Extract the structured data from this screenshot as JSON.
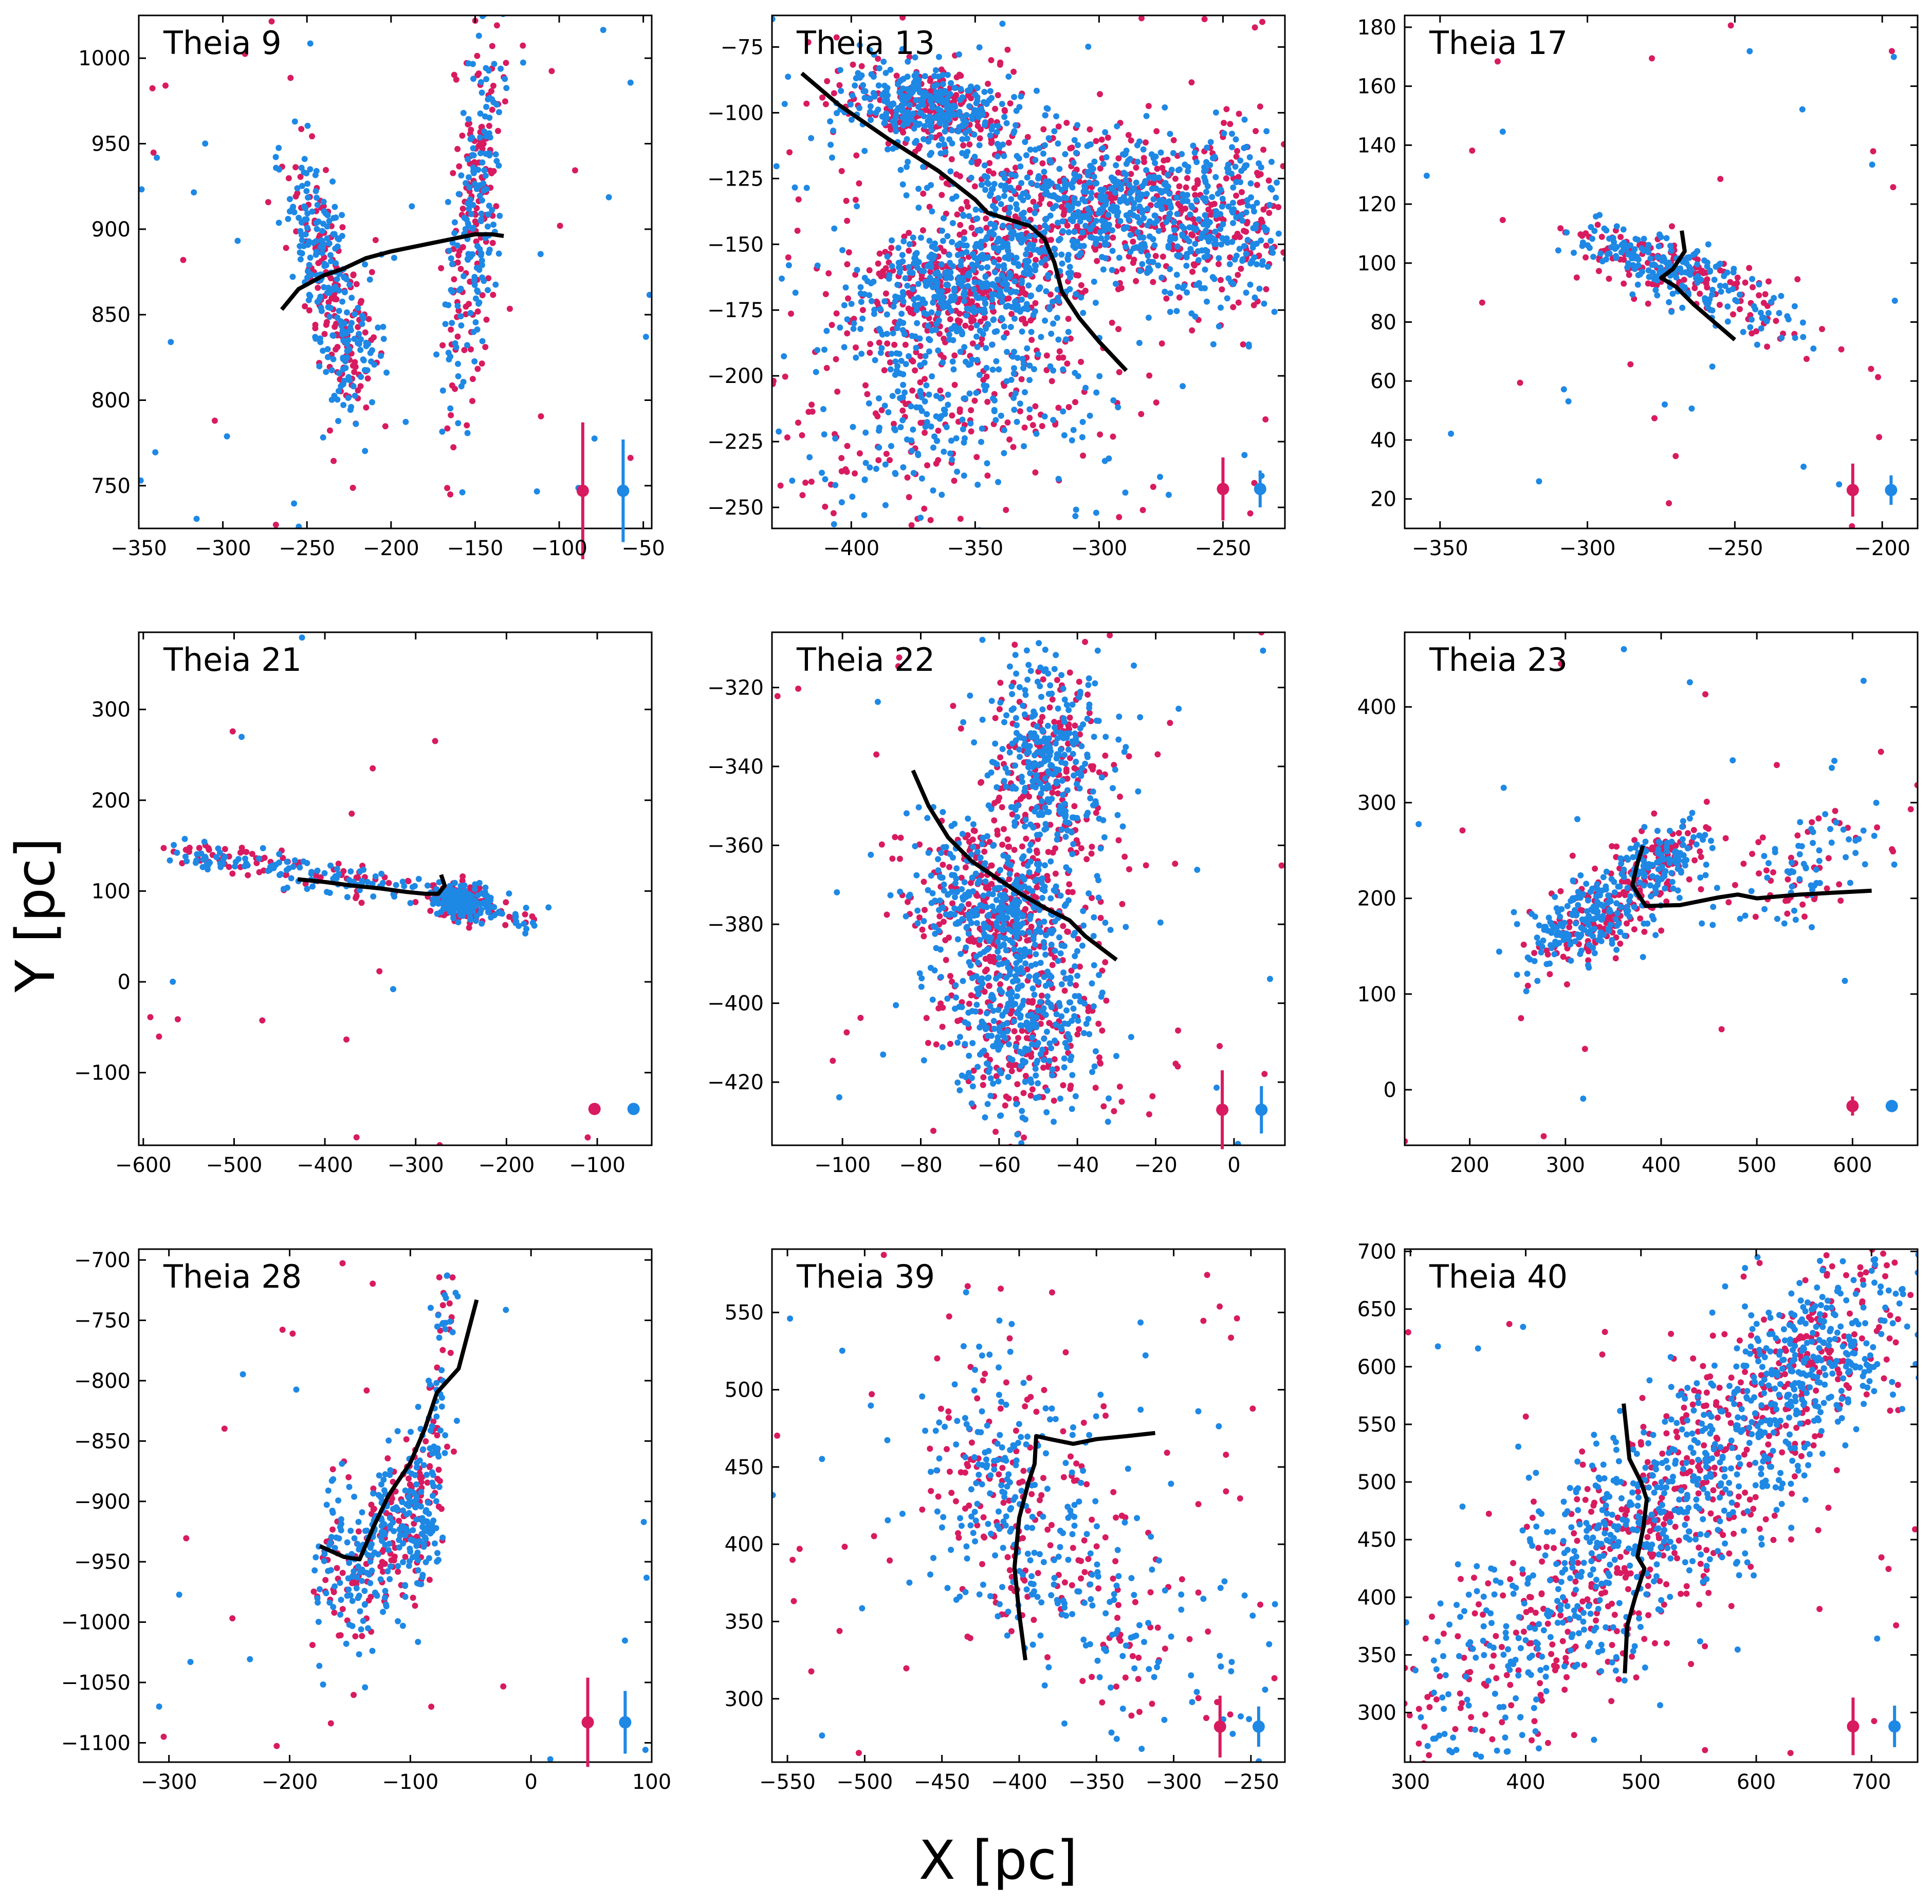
{
  "figure": {
    "xlabel": "X [pc]",
    "ylabel": "Y [pc]",
    "colors": {
      "series_a": "#d81b60",
      "series_b": "#1e88e5",
      "fit_line": "#000000",
      "frame": "#000000"
    }
  },
  "chart_data": [
    {
      "type": "scatter",
      "title": "Theia 9",
      "xlim": [
        -350,
        -45
      ],
      "ylim": [
        725,
        1025
      ],
      "xticks": [
        -350,
        -300,
        -250,
        -200,
        -150,
        -100,
        -50
      ],
      "yticks": [
        750,
        800,
        850,
        900,
        950,
        1000
      ],
      "clusters": [
        {
          "x": -240,
          "y": 880,
          "sx": 11,
          "sy": 30,
          "rho": -0.6,
          "n": 260
        },
        {
          "x": -225,
          "y": 830,
          "sx": 10,
          "sy": 25,
          "rho": 0.2,
          "n": 120
        },
        {
          "x": -150,
          "y": 910,
          "sx": 8,
          "sy": 55,
          "rho": 0.55,
          "n": 320
        }
      ],
      "outliers": 55,
      "fit_line": [
        [
          -265,
          853
        ],
        [
          -255,
          865
        ],
        [
          -240,
          873
        ],
        [
          -228,
          877
        ],
        [
          -215,
          883
        ],
        [
          -200,
          887
        ],
        [
          -175,
          892
        ],
        [
          -150,
          897
        ],
        [
          -140,
          897
        ],
        [
          -133,
          896
        ]
      ],
      "error_bars": [
        {
          "series": "series_a",
          "x": -86,
          "y": 747,
          "yerr": 40
        },
        {
          "series": "series_b",
          "x": -62,
          "y": 747,
          "yerr": 30
        }
      ]
    },
    {
      "type": "scatter",
      "title": "Theia 13",
      "xlim": [
        -432,
        -225
      ],
      "ylim": [
        -258,
        -63
      ],
      "xticks": [
        -400,
        -350,
        -300,
        -250
      ],
      "yticks": [
        -75,
        -100,
        -125,
        -150,
        -175,
        -200,
        -225,
        -250
      ],
      "clusters": [
        {
          "x": -370,
          "y": -97,
          "sx": 18,
          "sy": 8,
          "rho": -0.3,
          "n": 500
        },
        {
          "x": -300,
          "y": -135,
          "sx": 35,
          "sy": 14,
          "rho": -0.3,
          "n": 900
        },
        {
          "x": -355,
          "y": -165,
          "sx": 25,
          "sy": 12,
          "rho": 0.3,
          "n": 700
        },
        {
          "x": -360,
          "y": -210,
          "sx": 30,
          "sy": 22,
          "rho": 0.4,
          "n": 380
        },
        {
          "x": -250,
          "y": -140,
          "sx": 18,
          "sy": 18,
          "rho": 0.0,
          "n": 260
        }
      ],
      "outliers": 150,
      "fit_line": [
        [
          -420,
          -85
        ],
        [
          -405,
          -97
        ],
        [
          -385,
          -110
        ],
        [
          -365,
          -122
        ],
        [
          -350,
          -133
        ],
        [
          -345,
          -138
        ],
        [
          -335,
          -141
        ],
        [
          -328,
          -143
        ],
        [
          -322,
          -148
        ],
        [
          -318,
          -157
        ],
        [
          -315,
          -168
        ],
        [
          -308,
          -178
        ],
        [
          -300,
          -187
        ],
        [
          -289,
          -198
        ]
      ],
      "error_bars": [
        {
          "series": "series_a",
          "x": -250,
          "y": -243,
          "yerr": 12
        },
        {
          "series": "series_b",
          "x": -235,
          "y": -243,
          "yerr": 7
        }
      ]
    },
    {
      "type": "scatter",
      "title": "Theia 17",
      "xlim": [
        -362,
        -188
      ],
      "ylim": [
        10,
        184
      ],
      "xticks": [
        -350,
        -300,
        -250,
        -200
      ],
      "yticks": [
        20,
        40,
        60,
        80,
        100,
        120,
        140,
        160,
        180
      ],
      "clusters": [
        {
          "x": -280,
          "y": 102,
          "sx": 14,
          "sy": 5,
          "rho": -0.6,
          "n": 200
        },
        {
          "x": -255,
          "y": 88,
          "sx": 18,
          "sy": 8,
          "rho": -0.7,
          "n": 140
        }
      ],
      "outliers": 40,
      "fit_line": [
        [
          -268,
          111
        ],
        [
          -267,
          104
        ],
        [
          -271,
          98
        ],
        [
          -275,
          95
        ],
        [
          -270,
          92
        ],
        [
          -264,
          86
        ],
        [
          -257,
          80
        ],
        [
          -250,
          74
        ]
      ],
      "error_bars": [
        {
          "series": "series_a",
          "x": -210,
          "y": 23,
          "yerr": 9
        },
        {
          "series": "series_b",
          "x": -197,
          "y": 23,
          "yerr": 5
        }
      ]
    },
    {
      "type": "scatter",
      "title": "Theia 21",
      "xlim": [
        -605,
        -40
      ],
      "ylim": [
        -180,
        385
      ],
      "xticks": [
        -600,
        -500,
        -400,
        -300,
        -200,
        -100
      ],
      "yticks": [
        300,
        200,
        100,
        0,
        -100
      ],
      "clusters": [
        {
          "x": -250,
          "y": 88,
          "sx": 15,
          "sy": 9,
          "rho": 0.0,
          "n": 240
        },
        {
          "x": -380,
          "y": 112,
          "sx": 70,
          "sy": 12,
          "rho": -0.6,
          "n": 120
        },
        {
          "x": -520,
          "y": 137,
          "sx": 30,
          "sy": 8,
          "rho": -0.4,
          "n": 70
        },
        {
          "x": -200,
          "y": 72,
          "sx": 20,
          "sy": 8,
          "rho": -0.5,
          "n": 40
        }
      ],
      "outliers": 20,
      "fit_line": [
        [
          -430,
          113
        ],
        [
          -400,
          110
        ],
        [
          -370,
          106
        ],
        [
          -340,
          103
        ],
        [
          -310,
          99
        ],
        [
          -290,
          97
        ],
        [
          -275,
          97
        ],
        [
          -268,
          106
        ],
        [
          -272,
          118
        ]
      ],
      "error_bars": [
        {
          "series": "series_a",
          "x": -103,
          "y": -140,
          "yerr": 5
        },
        {
          "series": "series_b",
          "x": -60,
          "y": -140,
          "yerr": 3
        }
      ]
    },
    {
      "type": "scatter",
      "title": "Theia 22",
      "xlim": [
        -118,
        13
      ],
      "ylim": [
        -436,
        -306
      ],
      "xticks": [
        -100,
        -80,
        -60,
        -40,
        -20,
        0
      ],
      "yticks": [
        -320,
        -340,
        -360,
        -380,
        -400,
        -420
      ],
      "clusters": [
        {
          "x": -47,
          "y": -340,
          "sx": 8,
          "sy": 13,
          "rho": 0.0,
          "n": 500
        },
        {
          "x": -60,
          "y": -375,
          "sx": 11,
          "sy": 10,
          "rho": -0.3,
          "n": 600
        },
        {
          "x": -55,
          "y": -405,
          "sx": 11,
          "sy": 12,
          "rho": 0.0,
          "n": 500
        }
      ],
      "outliers": 60,
      "fit_line": [
        [
          -82,
          -341
        ],
        [
          -78,
          -350
        ],
        [
          -73,
          -358
        ],
        [
          -67,
          -364
        ],
        [
          -61,
          -368
        ],
        [
          -55,
          -372
        ],
        [
          -48,
          -376
        ],
        [
          -42,
          -379
        ],
        [
          -38,
          -383
        ],
        [
          -34,
          -386
        ],
        [
          -30,
          -389
        ]
      ],
      "error_bars": [
        {
          "series": "series_a",
          "x": -3,
          "y": -427,
          "yerr": 10
        },
        {
          "series": "series_b",
          "x": 7,
          "y": -427,
          "yerr": 6
        }
      ]
    },
    {
      "type": "scatter",
      "title": "Theia 23",
      "xlim": [
        132,
        668
      ],
      "ylim": [
        -58,
        478
      ],
      "xticks": [
        200,
        300,
        400,
        500,
        600
      ],
      "yticks": [
        0,
        100,
        200,
        300,
        400
      ],
      "clusters": [
        {
          "x": 330,
          "y": 180,
          "sx": 35,
          "sy": 25,
          "rho": 0.55,
          "n": 320
        },
        {
          "x": 400,
          "y": 240,
          "sx": 22,
          "sy": 20,
          "rho": 0.5,
          "n": 200
        },
        {
          "x": 555,
          "y": 240,
          "sx": 50,
          "sy": 35,
          "rho": 0.6,
          "n": 110
        }
      ],
      "outliers": 30,
      "fit_line": [
        [
          381,
          255
        ],
        [
          375,
          236
        ],
        [
          370,
          214
        ],
        [
          376,
          204
        ],
        [
          384,
          192
        ],
        [
          420,
          193
        ],
        [
          460,
          201
        ],
        [
          480,
          204
        ],
        [
          500,
          200
        ],
        [
          545,
          204
        ],
        [
          620,
          208
        ]
      ],
      "error_bars": [
        {
          "series": "series_a",
          "x": 600,
          "y": -17,
          "yerr": 10
        },
        {
          "series": "series_b",
          "x": 641,
          "y": -17,
          "yerr": 6
        }
      ]
    },
    {
      "type": "scatter",
      "title": "Theia 28",
      "xlim": [
        -325,
        100
      ],
      "ylim": [
        -1116,
        -691
      ],
      "xticks": [
        -300,
        -200,
        -100,
        0,
        100
      ],
      "yticks": [
        -700,
        -750,
        -800,
        -850,
        -900,
        -950,
        -1000,
        -1050,
        -1100
      ],
      "clusters": [
        {
          "x": -130,
          "y": -945,
          "sx": 16,
          "sy": 40,
          "rho": 0.5,
          "n": 220
        },
        {
          "x": -92,
          "y": -910,
          "sx": 11,
          "sy": 35,
          "rho": 0.3,
          "n": 180
        },
        {
          "x": -165,
          "y": -940,
          "sx": 8,
          "sy": 40,
          "rho": 0.6,
          "n": 60
        },
        {
          "x": -75,
          "y": -790,
          "sx": 6,
          "sy": 50,
          "rho": 0.6,
          "n": 50
        }
      ],
      "outliers": 30,
      "fit_line": [
        [
          -175,
          -937
        ],
        [
          -155,
          -946
        ],
        [
          -142,
          -948
        ],
        [
          -130,
          -920
        ],
        [
          -118,
          -895
        ],
        [
          -100,
          -868
        ],
        [
          -88,
          -840
        ],
        [
          -78,
          -810
        ],
        [
          -60,
          -790
        ],
        [
          -45,
          -733
        ]
      ],
      "error_bars": [
        {
          "series": "series_a",
          "x": 47,
          "y": -1083,
          "yerr": 37
        },
        {
          "series": "series_b",
          "x": 78,
          "y": -1083,
          "yerr": 26
        }
      ]
    },
    {
      "type": "scatter",
      "title": "Theia 39",
      "xlim": [
        -560,
        -228
      ],
      "ylim": [
        259,
        591
      ],
      "xticks": [
        -550,
        -500,
        -450,
        -400,
        -350,
        -300,
        -250
      ],
      "yticks": [
        300,
        350,
        400,
        450,
        500,
        550
      ],
      "clusters": [
        {
          "x": -410,
          "y": 440,
          "sx": 28,
          "sy": 45,
          "rho": -0.2,
          "n": 280
        },
        {
          "x": -340,
          "y": 360,
          "sx": 45,
          "sy": 40,
          "rho": -0.6,
          "n": 180
        }
      ],
      "outliers": 70,
      "fit_line": [
        [
          -396,
          325
        ],
        [
          -400,
          355
        ],
        [
          -403,
          385
        ],
        [
          -400,
          417
        ],
        [
          -394,
          440
        ],
        [
          -390,
          452
        ],
        [
          -389,
          470
        ],
        [
          -380,
          468
        ],
        [
          -365,
          465
        ],
        [
          -350,
          468
        ],
        [
          -330,
          470
        ],
        [
          -312,
          472
        ]
      ],
      "error_bars": [
        {
          "series": "series_a",
          "x": -270,
          "y": 282,
          "yerr": 20
        },
        {
          "series": "series_b",
          "x": -245,
          "y": 282,
          "yerr": 13
        }
      ]
    },
    {
      "type": "scatter",
      "title": "Theia 40",
      "xlim": [
        295,
        740
      ],
      "ylim": [
        257,
        702
      ],
      "xticks": [
        300,
        400,
        500,
        600,
        700
      ],
      "yticks": [
        300,
        350,
        400,
        450,
        500,
        550,
        600,
        650,
        700
      ],
      "clusters": [
        {
          "x": 520,
          "y": 480,
          "sx": 110,
          "sy": 110,
          "rho": 0.88,
          "n": 1300
        },
        {
          "x": 650,
          "y": 610,
          "sx": 40,
          "sy": 40,
          "rho": 0.5,
          "n": 250
        }
      ],
      "outliers": 40,
      "fit_line": [
        [
          485,
          568
        ],
        [
          490,
          520
        ],
        [
          500,
          500
        ],
        [
          505,
          485
        ],
        [
          502,
          460
        ],
        [
          497,
          435
        ],
        [
          503,
          425
        ],
        [
          495,
          400
        ],
        [
          488,
          375
        ],
        [
          486,
          334
        ]
      ],
      "error_bars": [
        {
          "series": "series_a",
          "x": 684,
          "y": 288,
          "yerr": 25
        },
        {
          "series": "series_b",
          "x": 720,
          "y": 288,
          "yerr": 18
        }
      ]
    }
  ]
}
